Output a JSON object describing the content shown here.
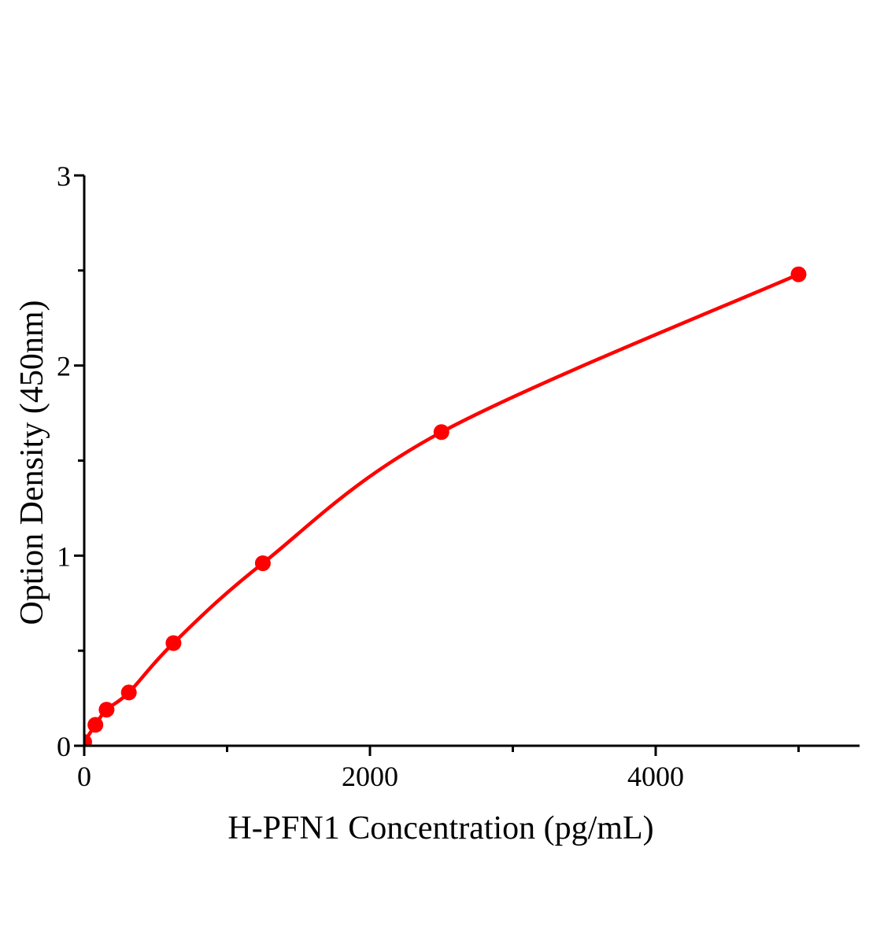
{
  "figure": {
    "kind": "elisa-standard-curve-plot"
  },
  "chart_data": {
    "type": "line",
    "title": "",
    "xlabel": "H-PFN1 Concentration (pg/mL)",
    "ylabel": "Option Density (450nm)",
    "x": [
      0,
      78.125,
      156.25,
      312.5,
      625,
      1250,
      2500,
      5000
    ],
    "y": [
      0.02,
      0.11,
      0.19,
      0.28,
      0.54,
      0.96,
      1.65,
      2.48
    ],
    "xlim": [
      0,
      5425
    ],
    "ylim": [
      0,
      3
    ],
    "x_major_ticks": [
      0,
      2000,
      4000
    ],
    "x_tick_labels": [
      "0",
      "2000",
      "4000"
    ],
    "x_minor_ticks": [
      1000,
      3000,
      5000
    ],
    "y_major_ticks": [
      0,
      1,
      2,
      3
    ],
    "y_tick_labels": [
      "0",
      "1",
      "2",
      "3"
    ],
    "y_minor_ticks": [
      0.5,
      1.5,
      2.5
    ],
    "grid": false,
    "legend": "none",
    "marker": "circle",
    "line_color": "#ff0000",
    "marker_color": "#ff0000",
    "axis_color": "#000000",
    "background_color": "#ffffff"
  }
}
